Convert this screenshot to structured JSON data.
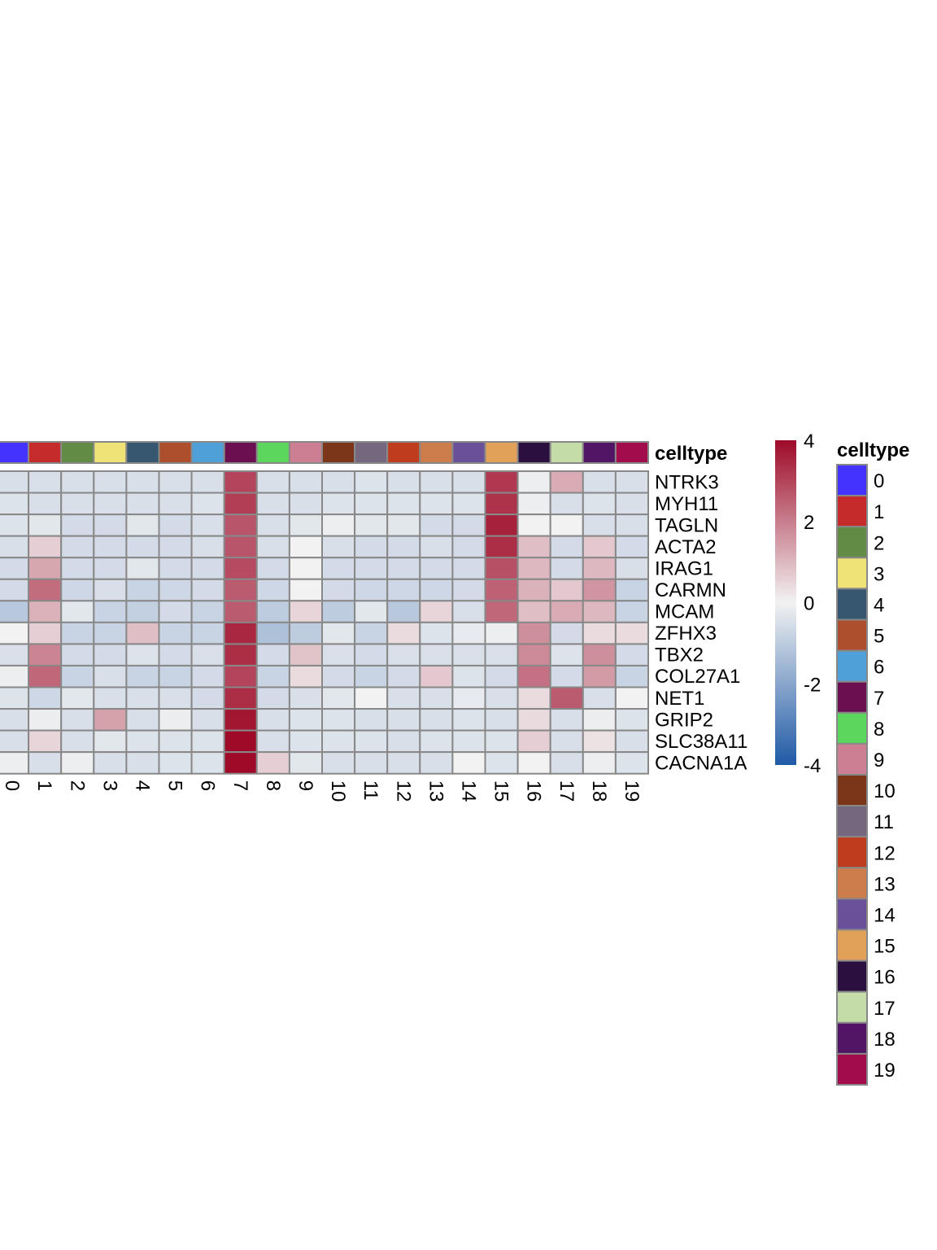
{
  "chart_data": {
    "type": "heatmap",
    "annotation_title": "celltype",
    "columns": [
      "0",
      "1",
      "2",
      "3",
      "4",
      "5",
      "6",
      "7",
      "8",
      "9",
      "10",
      "11",
      "12",
      "13",
      "14",
      "15",
      "16",
      "17",
      "18",
      "19"
    ],
    "rows": [
      "NTRK3",
      "MYH11",
      "TAGLN",
      "ACTA2",
      "IRAG1",
      "CARMN",
      "MCAM",
      "ZFHX3",
      "TBX2",
      "COL27A1",
      "NET1",
      "GRIP2",
      "SLC38A11",
      "CACNA1A"
    ],
    "values": [
      [
        -0.5,
        -0.5,
        -0.5,
        -0.5,
        -0.5,
        -0.5,
        -0.5,
        3.0,
        -0.5,
        -0.5,
        -0.5,
        -0.4,
        -0.5,
        -0.5,
        -0.5,
        3.2,
        -0.1,
        1.2,
        -0.5,
        -0.5
      ],
      [
        -0.4,
        -0.5,
        -0.5,
        -0.5,
        -0.5,
        -0.5,
        -0.4,
        3.1,
        -0.5,
        -0.5,
        -0.4,
        -0.4,
        -0.4,
        -0.4,
        -0.4,
        3.3,
        -0.1,
        -0.5,
        -0.4,
        -0.5
      ],
      [
        -0.4,
        -0.3,
        -0.6,
        -0.6,
        -0.3,
        -0.6,
        -0.5,
        2.7,
        -0.5,
        -0.3,
        -0.1,
        -0.3,
        -0.3,
        -0.6,
        -0.6,
        3.6,
        0.0,
        0.0,
        -0.5,
        -0.5
      ],
      [
        -0.5,
        0.6,
        -0.6,
        -0.6,
        -0.6,
        -0.6,
        -0.5,
        2.7,
        -0.5,
        0.0,
        -0.5,
        -0.6,
        -0.6,
        -0.5,
        -0.6,
        3.4,
        0.9,
        -0.6,
        0.7,
        -0.6
      ],
      [
        -0.6,
        1.3,
        -0.6,
        -0.6,
        -0.3,
        -0.6,
        -0.6,
        2.9,
        -0.6,
        0.0,
        -0.6,
        -0.6,
        -0.6,
        -0.6,
        -0.6,
        2.8,
        1.0,
        -0.6,
        1.0,
        -0.5
      ],
      [
        -0.6,
        2.3,
        -0.7,
        -0.5,
        -0.8,
        -0.7,
        -0.6,
        2.6,
        -0.7,
        0.0,
        -0.6,
        -0.7,
        -0.7,
        -0.7,
        -0.6,
        2.5,
        1.1,
        0.7,
        1.6,
        -0.8
      ],
      [
        -1.1,
        1.1,
        -0.3,
        -0.8,
        -0.9,
        -0.6,
        -0.8,
        2.6,
        -1.0,
        0.5,
        -1.0,
        -0.3,
        -1.1,
        0.5,
        -0.5,
        2.4,
        0.9,
        1.2,
        1.0,
        -0.8
      ],
      [
        0.0,
        0.6,
        -0.8,
        -0.8,
        0.9,
        -0.8,
        -0.8,
        3.5,
        -1.3,
        -1.0,
        -0.3,
        -0.8,
        0.4,
        -0.4,
        -0.2,
        -0.1,
        1.7,
        -0.6,
        0.4,
        0.4
      ],
      [
        -0.5,
        1.9,
        -0.6,
        -0.6,
        -0.4,
        -0.6,
        -0.5,
        3.4,
        -0.6,
        0.8,
        -0.5,
        -0.6,
        -0.5,
        -0.5,
        -0.5,
        -0.5,
        1.8,
        -0.4,
        1.7,
        -0.6
      ],
      [
        -0.1,
        2.4,
        -0.8,
        -0.5,
        -0.8,
        -0.8,
        -0.6,
        3.0,
        -0.8,
        0.4,
        -0.6,
        -0.8,
        -0.6,
        0.7,
        -0.4,
        -0.6,
        2.2,
        -0.6,
        1.5,
        -0.8
      ],
      [
        -0.4,
        -0.7,
        -0.3,
        -0.5,
        -0.5,
        -0.5,
        -0.6,
        3.4,
        -0.6,
        -0.5,
        -0.3,
        0.0,
        -0.5,
        -0.5,
        -0.2,
        -0.5,
        0.4,
        2.6,
        -0.5,
        0.0
      ],
      [
        -0.5,
        -0.1,
        -0.5,
        1.4,
        -0.5,
        -0.1,
        -0.5,
        3.8,
        -0.5,
        -0.4,
        -0.4,
        -0.5,
        -0.5,
        -0.5,
        -0.4,
        -0.5,
        0.4,
        -0.5,
        -0.1,
        -0.4
      ],
      [
        -0.5,
        0.5,
        -0.5,
        -0.3,
        -0.4,
        -0.4,
        -0.4,
        4.0,
        -0.5,
        -0.4,
        -0.4,
        -0.4,
        -0.5,
        -0.4,
        -0.4,
        -0.4,
        0.6,
        -0.5,
        0.3,
        -0.5
      ],
      [
        -0.1,
        -0.5,
        -0.1,
        -0.5,
        -0.5,
        -0.4,
        -0.4,
        4.0,
        0.6,
        -0.3,
        -0.5,
        -0.5,
        -0.5,
        -0.5,
        0.0,
        -0.4,
        0.0,
        -0.5,
        -0.1,
        -0.4
      ]
    ],
    "colorbar": {
      "ticks": [
        4,
        2,
        0,
        -2,
        -4
      ],
      "min": -4,
      "max": 4,
      "low_color": "#1f5aa6",
      "mid_color": "#f2f2f2",
      "high_color": "#9e0a28"
    },
    "celltype_colors": [
      "#4433ff",
      "#c62b2b",
      "#628c45",
      "#efe378",
      "#375670",
      "#ad4f2c",
      "#4fa0d8",
      "#6a1050",
      "#5cd65c",
      "#cc7f93",
      "#7b3519",
      "#74677e",
      "#bf3d1f",
      "#cd7c4b",
      "#6a5098",
      "#e1a158",
      "#2b0f3e",
      "#c4dca8",
      "#521565",
      "#a30c4c"
    ],
    "legend": {
      "title": "celltype",
      "placement": "right"
    }
  }
}
